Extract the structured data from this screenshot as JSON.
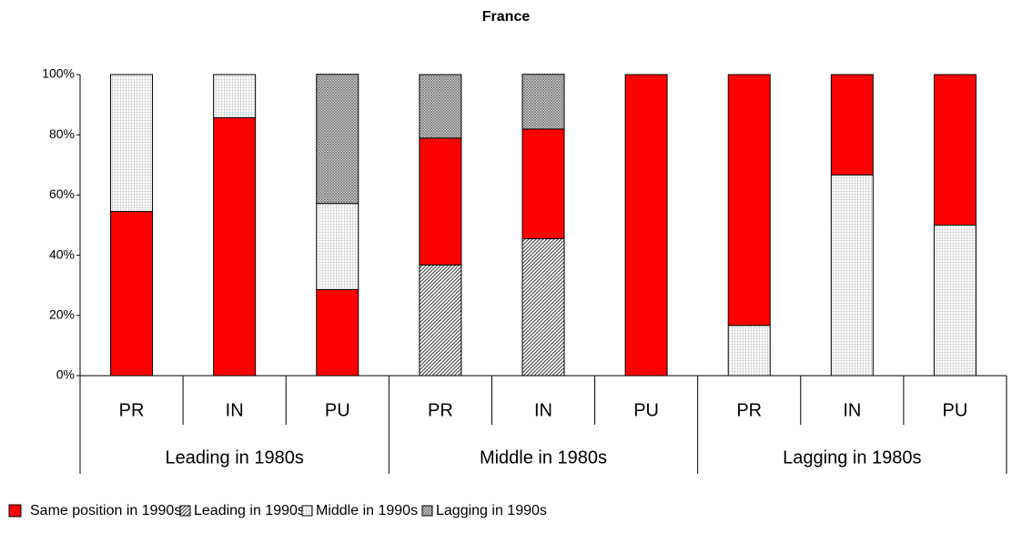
{
  "chart_data": {
    "type": "stacked_bar",
    "title": "France",
    "categories": [
      "PR",
      "IN",
      "PU",
      "PR",
      "IN",
      "PU",
      "PR",
      "IN",
      "PU"
    ],
    "groups": [
      "Leading in 1980s",
      "Middle in 1980s",
      "Lagging in 1980s"
    ],
    "series": [
      {
        "name": "Same position in 1990s",
        "color": "#ff0000",
        "values": [
          54.5,
          85.7,
          28.6,
          42.1,
          36.4,
          100,
          83.3,
          33.3,
          50
        ]
      },
      {
        "name": "Leading in 1990s",
        "color": "#555555",
        "values": [
          0,
          0,
          0,
          36.8,
          45.5,
          0,
          0,
          0,
          0
        ]
      },
      {
        "name": "Middle in 1990s",
        "color": "#9a9a9a",
        "values": [
          45.5,
          14.3,
          28.6,
          0,
          0,
          0,
          16.7,
          66.7,
          50
        ]
      },
      {
        "name": "Lagging in 1990s",
        "color": "#6e6e6e",
        "values": [
          0,
          0,
          42.9,
          21.1,
          18.2,
          0,
          0,
          0,
          0
        ]
      }
    ],
    "ylim": [
      0,
      100
    ],
    "yticks": [
      {
        "value": 0,
        "label": "0%"
      },
      {
        "value": 20,
        "label": "20%"
      },
      {
        "value": 40,
        "label": "40%"
      },
      {
        "value": 60,
        "label": "60%"
      },
      {
        "value": 80,
        "label": "80%"
      },
      {
        "value": 100,
        "label": "100%"
      }
    ]
  }
}
